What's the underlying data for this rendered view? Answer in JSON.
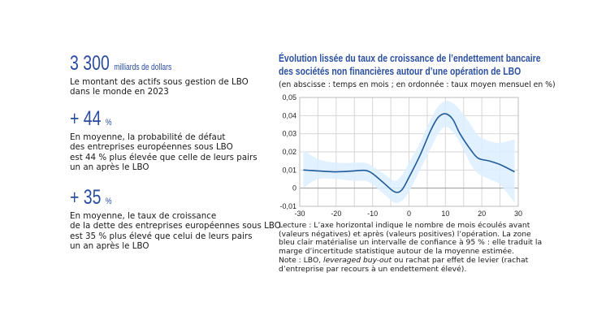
{
  "stats": [
    {
      "value": "3 300",
      "unit": "milliards de dollars",
      "text": "Le montant des actifs sous gestion de LBO\ndans le monde en 2023"
    },
    {
      "value": "+ 44",
      "unit": "%",
      "text": "En moyenne, la probabilité de défaut\ndes entreprises européennes sous LBO\nest 44 % plus élevée que celle de leurs pairs\nun an après le LBO"
    },
    {
      "value": "+ 35",
      "unit": "%",
      "text": "En moyenne, le taux de croissance\nde la dette des entreprises européennes sous LBO\nest 35 % plus élevé que celui de leurs pairs\nun an après le LBO"
    }
  ],
  "chart_data": {
    "type": "line",
    "title": "Évolution lissée du taux de croissance de l’endettement bancaire\ndes sociétés non financières autour d’une opération de LBO",
    "subtitle": "(en abscisse : temps en mois ; en ordonnée : taux moyen mensuel en %)",
    "xlim": [
      -30,
      30
    ],
    "ylim": [
      -0.01,
      0.05
    ],
    "xticks": [
      -30,
      -20,
      -10,
      0,
      10,
      20,
      30
    ],
    "xtick_labels": [
      "-30",
      "-20",
      "-10",
      "0",
      "10",
      "20",
      "30"
    ],
    "yticks": [
      -0.01,
      0,
      0.01,
      0.02,
      0.03,
      0.04,
      0.05
    ],
    "ytick_labels": [
      "-0,01",
      "0",
      "0,01",
      "0,02",
      "0,03",
      "0,04",
      "0,05"
    ],
    "grid": true,
    "line_color": "#1f5a9a",
    "band_color": "#dcefff",
    "x": [
      -29,
      -25,
      -20,
      -15,
      -12,
      -10,
      -7,
      -4,
      -2,
      0,
      3,
      6,
      8,
      10,
      12,
      14,
      17,
      19,
      22,
      25,
      29
    ],
    "series": [
      {
        "values": [
          0.01,
          0.0095,
          0.009,
          0.0095,
          0.0098,
          0.008,
          0.003,
          -0.002,
          -0.001,
          0.006,
          0.018,
          0.032,
          0.039,
          0.041,
          0.038,
          0.03,
          0.021,
          0.0165,
          0.015,
          0.013,
          0.009
        ]
      }
    ],
    "band_upper": [
      0.021,
      0.016,
      0.014,
      0.014,
      0.014,
      0.012,
      0.008,
      0.004,
      0.007,
      0.014,
      0.025,
      0.038,
      0.045,
      0.048,
      0.047,
      0.043,
      0.035,
      0.029,
      0.026,
      0.025,
      0.027
    ],
    "band_lower": [
      0.0,
      0.005,
      0.005,
      0.004,
      0.004,
      0.002,
      -0.003,
      -0.008,
      -0.007,
      -0.002,
      0.01,
      0.022,
      0.03,
      0.034,
      0.031,
      0.025,
      0.013,
      0.008,
      0.005,
      0.002,
      -0.008
    ]
  },
  "note": {
    "lecture": "Lecture : L’axe horizontal indique le nombre de mois écoulés avant (valeurs négatives) et après (valeurs positives) l’opération. La zone bleu clair matérialise un intervalle de confiance à 95 % : elle traduit la marge d’incertitude statistique autour de la moyenne estimée.",
    "note_prefix": "Note : LBO, ",
    "note_italic": "leveraged buy-out",
    "note_suffix": " ou rachat par effet de levier (rachat d’entreprise par recours à un endettement élevé)."
  }
}
